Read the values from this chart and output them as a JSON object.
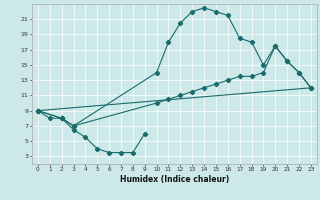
{
  "xlabel": "Humidex (Indice chaleur)",
  "xlim": [
    -0.5,
    23.5
  ],
  "ylim": [
    2,
    23
  ],
  "xticks": [
    0,
    1,
    2,
    3,
    4,
    5,
    6,
    7,
    8,
    9,
    10,
    11,
    12,
    13,
    14,
    15,
    16,
    17,
    18,
    19,
    20,
    21,
    22,
    23
  ],
  "yticks": [
    3,
    5,
    7,
    9,
    11,
    13,
    15,
    17,
    19,
    21
  ],
  "bg_color": "#cde8e8",
  "line_color": "#1a6b6b",
  "line1_x": [
    0,
    1,
    2,
    3,
    4,
    5,
    6,
    7,
    8,
    9
  ],
  "line1_y": [
    9,
    8,
    8,
    6.5,
    5.5,
    4,
    3.5,
    3.5,
    3.5,
    6
  ],
  "line2_x": [
    0,
    2,
    3,
    10,
    11,
    12,
    13,
    14,
    15,
    16,
    17,
    18,
    19,
    20,
    21,
    22,
    23
  ],
  "line2_y": [
    9,
    8,
    7,
    14,
    18,
    20.5,
    22,
    22.5,
    22,
    21.5,
    18.5,
    18,
    15,
    17.5,
    15.5,
    14,
    12
  ],
  "line3_x": [
    0,
    2,
    3,
    10,
    11,
    12,
    13,
    14,
    15,
    16,
    17,
    18,
    19,
    20,
    21,
    22,
    23
  ],
  "line3_y": [
    9,
    8,
    7,
    10,
    10.5,
    11,
    11.5,
    12,
    12.5,
    13,
    13.5,
    13.5,
    14,
    17.5,
    15.5,
    14,
    12
  ],
  "line4_x": [
    0,
    23
  ],
  "line4_y": [
    9,
    12
  ],
  "xtick_fontsize": 4.2,
  "ytick_fontsize": 4.5,
  "xlabel_fontsize": 5.5
}
